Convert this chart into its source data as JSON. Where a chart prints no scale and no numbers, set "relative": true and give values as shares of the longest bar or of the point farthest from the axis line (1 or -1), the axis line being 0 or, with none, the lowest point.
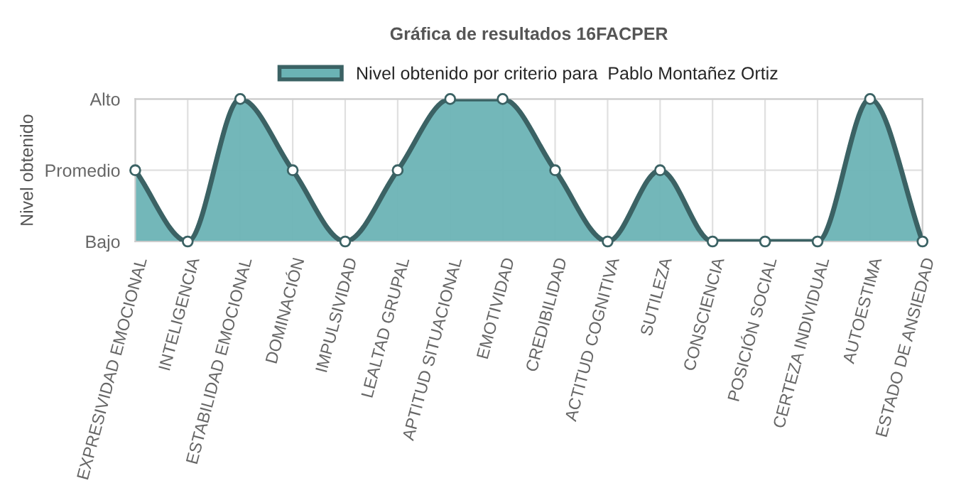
{
  "chart_data": {
    "type": "area",
    "title": "Gráfica de resultados 16FACPER",
    "ylabel": "Nivel obtenido",
    "categories": [
      "EXPRESIVIDAD EMOCIONAL",
      "INTELIGENCIA",
      "ESTABILIDAD EMOCIONAL",
      "DOMINACIÓN",
      "IMPULSIVIDAD",
      "LEALTAD GRUPAL",
      "APTITUD SITUACIONAL",
      "EMOTIVIDAD",
      "CREDIBILIDAD",
      "ACTITUD COGNITIVA",
      "SUTILEZA",
      "CONSCIENCIA",
      "POSICIÓN SOCIAL",
      "CERTEZA INDIVIDUAL",
      "AUTOESTIMA",
      "ESTADO DE ANSIEDAD"
    ],
    "series": [
      {
        "name": "Nivel obtenido por criterio para  Pablo Montañez Ortiz",
        "color": "#6bb3b5",
        "values": [
          0.5,
          0,
          1,
          0.5,
          0,
          0.5,
          1,
          1,
          0.5,
          0,
          0.5,
          0,
          0,
          0,
          1,
          0
        ]
      }
    ],
    "relative": true,
    "annotations": [
      "Alto",
      "Promedio",
      "Bajo"
    ],
    "grid": true,
    "legend": "top",
    "marker": "circle",
    "line_style": "solid"
  }
}
